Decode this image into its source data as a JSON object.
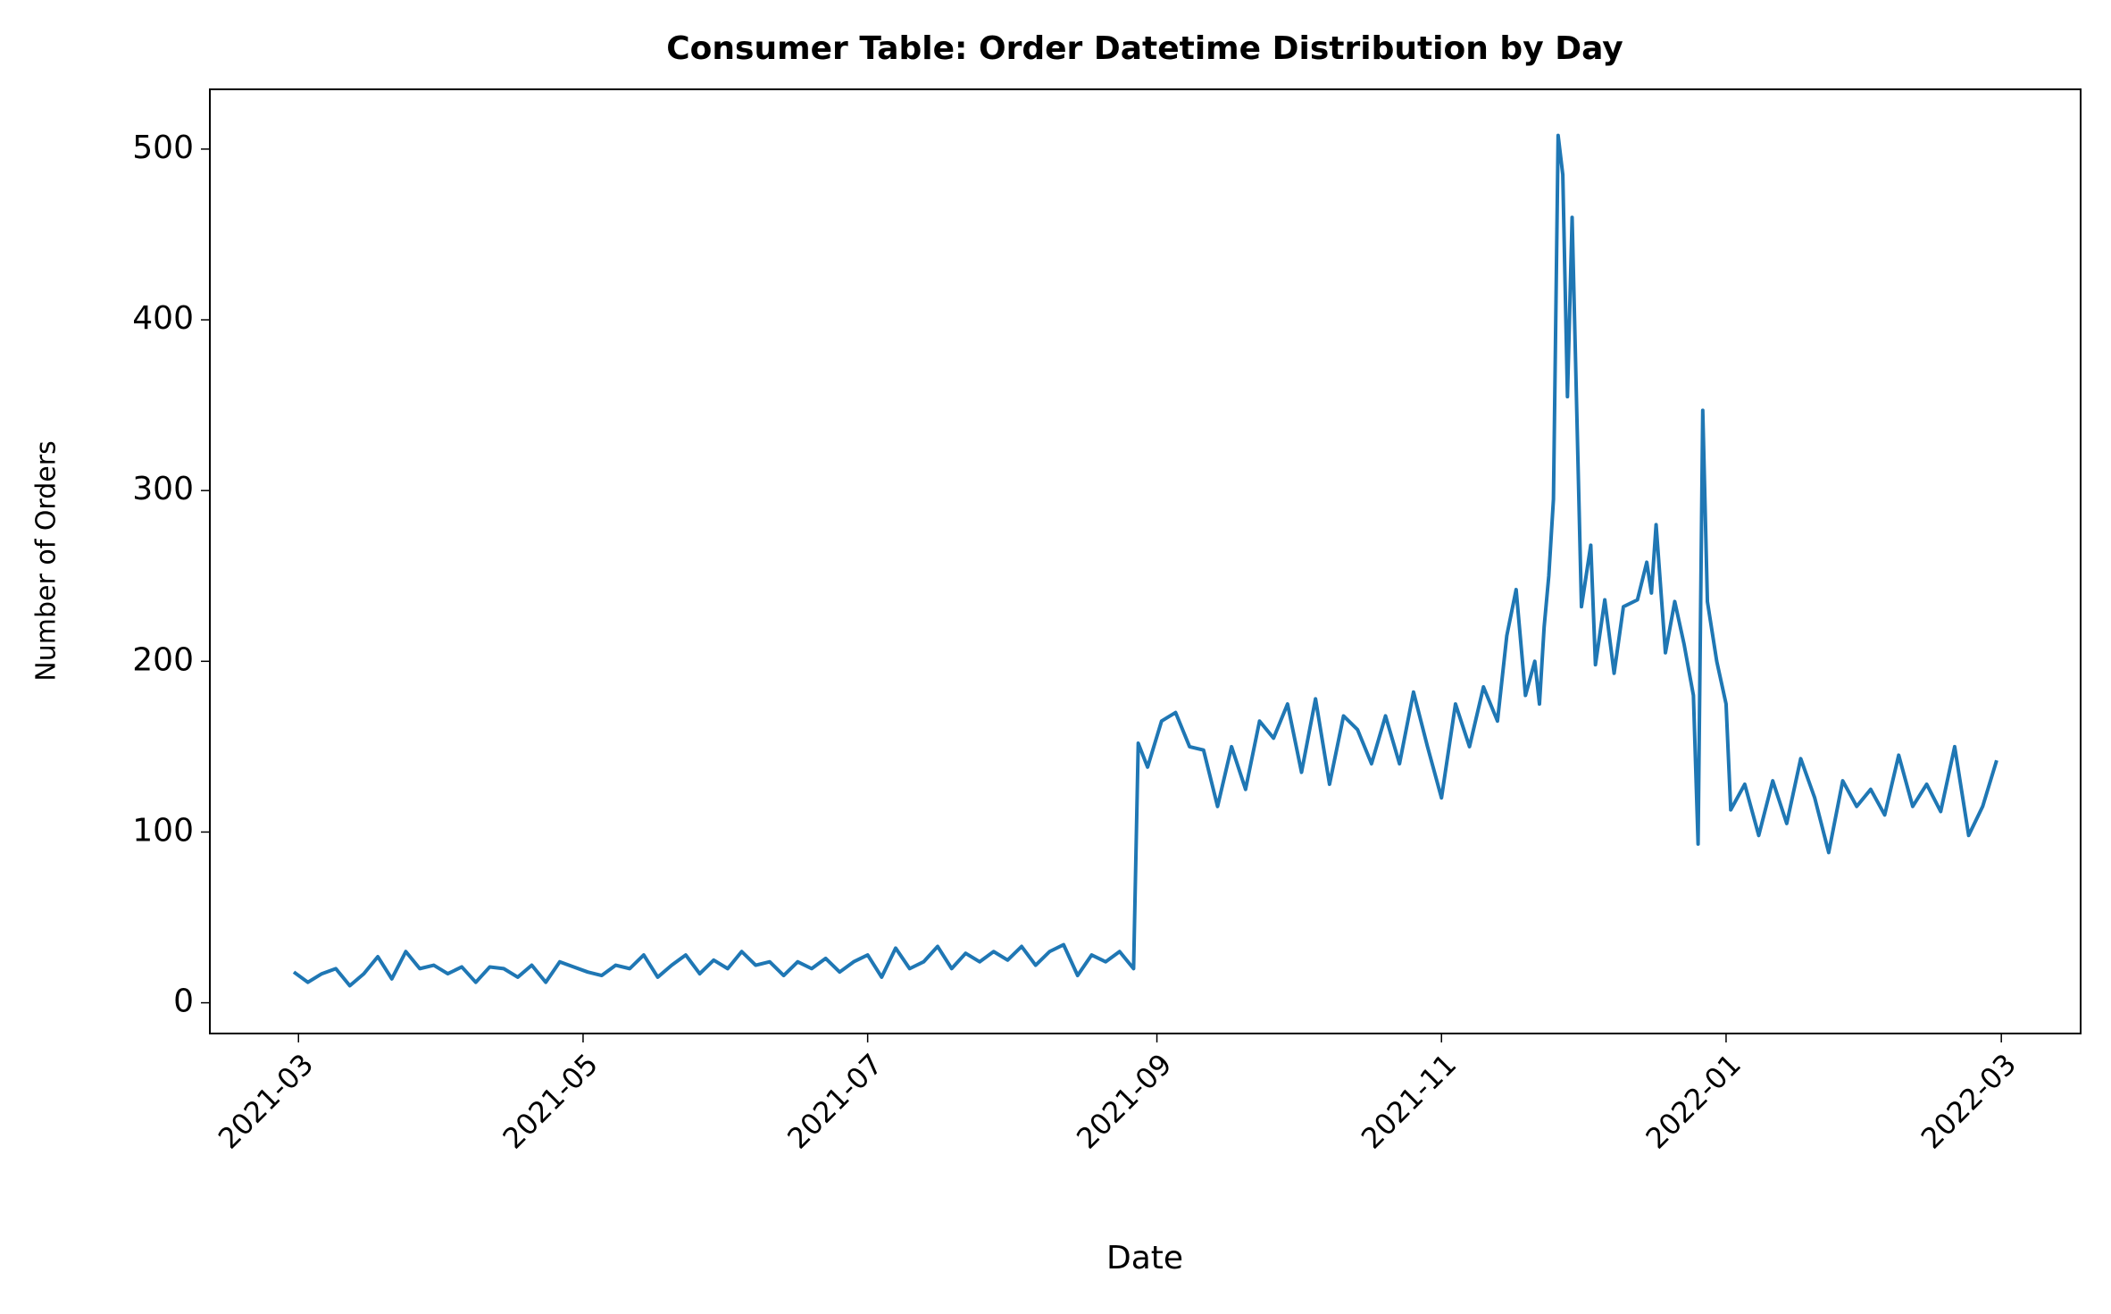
{
  "chart_data": {
    "type": "line",
    "title": "Consumer Table: Order Datetime Distribution by Day",
    "x_label": "Date",
    "y_label": "Number of Orders",
    "x": [
      -1,
      2,
      5,
      8,
      11,
      14,
      17,
      20,
      23,
      26,
      29,
      32,
      35,
      38,
      41,
      44,
      47,
      50,
      53,
      56,
      59,
      62,
      65,
      68,
      71,
      74,
      77,
      80,
      83,
      86,
      89,
      92,
      95,
      98,
      101,
      104,
      107,
      110,
      113,
      116,
      119,
      122,
      125,
      128,
      131,
      134,
      137,
      140,
      143,
      146,
      149,
      152,
      155,
      158,
      161,
      164,
      167,
      170,
      173,
      176,
      179,
      180,
      182,
      185,
      188,
      191,
      194,
      197,
      200,
      203,
      206,
      209,
      212,
      215,
      218,
      221,
      224,
      227,
      230,
      233,
      236,
      239,
      242,
      245,
      248,
      251,
      254,
      257,
      259,
      261,
      263,
      265,
      266,
      267,
      268,
      269,
      270,
      271,
      272,
      273,
      275,
      277,
      278,
      280,
      282,
      284,
      287,
      289,
      290,
      291,
      293,
      295,
      297,
      299,
      300,
      301,
      302,
      304,
      306,
      307,
      310,
      313,
      316,
      319,
      322,
      325,
      328,
      331,
      334,
      337,
      340,
      343,
      346,
      349,
      352,
      355,
      358,
      361,
      364
    ],
    "values": [
      18,
      12,
      17,
      20,
      10,
      17,
      27,
      14,
      30,
      20,
      22,
      17,
      21,
      12,
      21,
      20,
      15,
      22,
      12,
      24,
      21,
      18,
      16,
      22,
      20,
      28,
      15,
      22,
      28,
      17,
      25,
      20,
      30,
      22,
      24,
      16,
      24,
      20,
      26,
      18,
      24,
      28,
      15,
      32,
      20,
      24,
      33,
      20,
      29,
      24,
      30,
      25,
      33,
      22,
      30,
      34,
      16,
      28,
      24,
      30,
      20,
      152,
      138,
      165,
      170,
      150,
      148,
      115,
      150,
      125,
      165,
      155,
      175,
      135,
      178,
      128,
      168,
      160,
      140,
      168,
      140,
      182,
      150,
      120,
      175,
      150,
      185,
      165,
      215,
      242,
      180,
      200,
      175,
      220,
      250,
      295,
      508,
      485,
      355,
      460,
      232,
      268,
      198,
      236,
      193,
      232,
      236,
      258,
      240,
      280,
      205,
      235,
      210,
      180,
      93,
      347,
      235,
      200,
      175,
      113,
      128,
      98,
      130,
      105,
      143,
      120,
      88,
      130,
      115,
      125,
      110,
      145,
      115,
      128,
      112,
      150,
      98,
      115,
      142
    ],
    "color": "#1f77b4",
    "xlim": [
      -19,
      382
    ],
    "ylim": [
      -18,
      535
    ],
    "xticks": [
      {
        "value": 0,
        "label": "2021-03"
      },
      {
        "value": 61,
        "label": "2021-05"
      },
      {
        "value": 122,
        "label": "2021-07"
      },
      {
        "value": 184,
        "label": "2021-09"
      },
      {
        "value": 245,
        "label": "2021-11"
      },
      {
        "value": 306,
        "label": "2022-01"
      },
      {
        "value": 365,
        "label": "2022-03"
      }
    ],
    "yticks": [
      0,
      100,
      200,
      300,
      400,
      500
    ]
  }
}
